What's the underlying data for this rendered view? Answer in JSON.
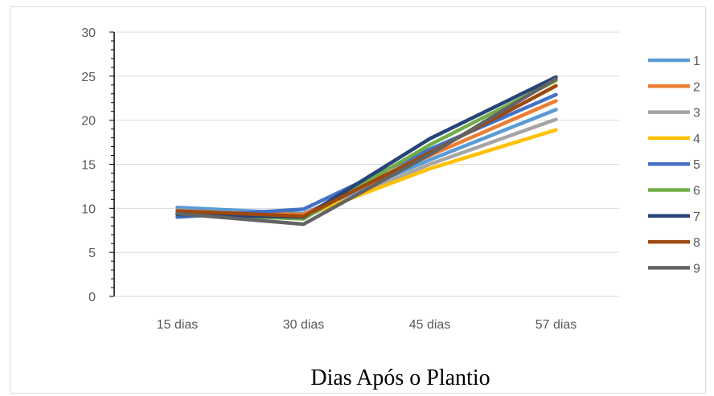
{
  "chart_data": {
    "type": "line",
    "categories": [
      "15 dias",
      "30 dias",
      "45 dias",
      "57 dias"
    ],
    "xlabel": "Dias Após o Plantio",
    "ylabel": "",
    "ylim": [
      0,
      30
    ],
    "yticks": [
      0,
      5,
      10,
      15,
      20,
      25,
      30
    ],
    "grid": true,
    "legend_position": "right",
    "series": [
      {
        "name": "1",
        "color": "#5B9BD5",
        "values": [
          10.1,
          9.4,
          15.5,
          21.2
        ]
      },
      {
        "name": "2",
        "color": "#ED7D31",
        "values": [
          9.6,
          9.3,
          16.0,
          22.2
        ]
      },
      {
        "name": "3",
        "color": "#A5A5A5",
        "values": [
          9.8,
          9.0,
          15.0,
          20.1
        ]
      },
      {
        "name": "4",
        "color": "#FFC000",
        "values": [
          9.5,
          9.1,
          14.5,
          18.9
        ]
      },
      {
        "name": "5",
        "color": "#4472C4",
        "values": [
          9.0,
          9.9,
          16.7,
          22.9
        ]
      },
      {
        "name": "6",
        "color": "#70AD47",
        "values": [
          9.4,
          8.8,
          17.2,
          24.5
        ]
      },
      {
        "name": "7",
        "color": "#264478",
        "values": [
          9.3,
          9.0,
          17.9,
          24.9
        ]
      },
      {
        "name": "8",
        "color": "#9E480E",
        "values": [
          9.7,
          9.1,
          16.3,
          23.9
        ]
      },
      {
        "name": "9",
        "color": "#636363",
        "values": [
          9.4,
          8.2,
          16.1,
          24.7
        ]
      }
    ]
  }
}
